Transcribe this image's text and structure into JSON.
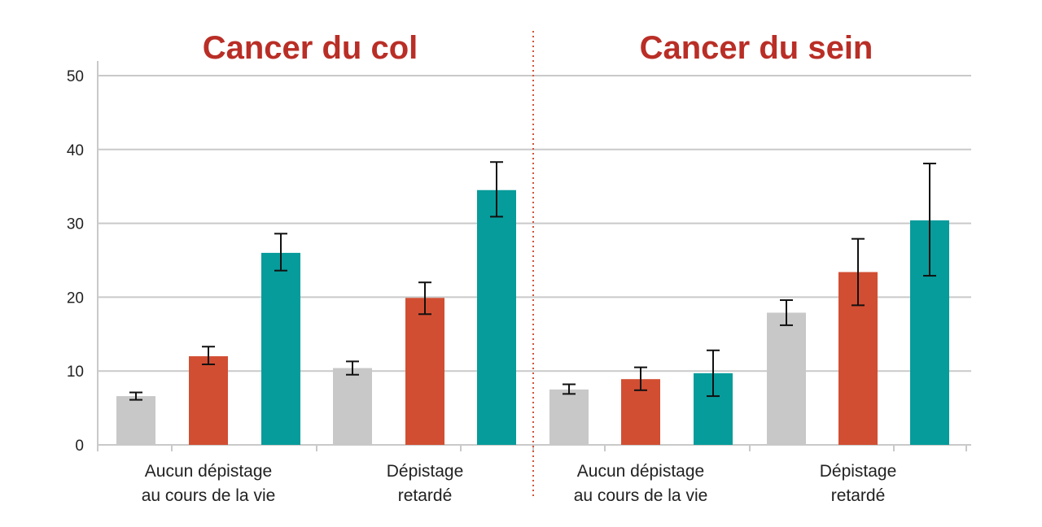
{
  "colors": {
    "grey": "#c8c8c8",
    "red": "#d24e32",
    "teal": "#069c9b",
    "title": "#b92e26",
    "grid": "#c9c9c9",
    "divider": "#d2543a"
  },
  "chart_data": {
    "type": "bar",
    "y_ticks": [
      "0",
      "10",
      "20",
      "30",
      "40",
      "50"
    ],
    "ylim": [
      0,
      50
    ],
    "grid": true,
    "error_bars": true,
    "panels": [
      {
        "title": "Cancer du col",
        "groups": [
          {
            "label_lines": [
              "Aucun dépistage",
              "au cours de la vie"
            ],
            "bars": [
              {
                "color": "grey",
                "value": 6.6,
                "err_low": 6.1,
                "err_high": 7.1
              },
              {
                "color": "red",
                "value": 12.0,
                "err_low": 10.9,
                "err_high": 13.3
              },
              {
                "color": "teal",
                "value": 26.0,
                "err_low": 23.6,
                "err_high": 28.6
              }
            ]
          },
          {
            "label_lines": [
              "Dépistage",
              "retardé"
            ],
            "bars": [
              {
                "color": "grey",
                "value": 10.4,
                "err_low": 9.5,
                "err_high": 11.3
              },
              {
                "color": "red",
                "value": 19.9,
                "err_low": 17.7,
                "err_high": 22.0
              },
              {
                "color": "teal",
                "value": 34.5,
                "err_low": 30.9,
                "err_high": 38.3
              }
            ]
          }
        ]
      },
      {
        "title": "Cancer du sein",
        "groups": [
          {
            "label_lines": [
              "Aucun dépistage",
              "au cours de la vie"
            ],
            "bars": [
              {
                "color": "grey",
                "value": 7.5,
                "err_low": 6.9,
                "err_high": 8.2
              },
              {
                "color": "red",
                "value": 8.9,
                "err_low": 7.4,
                "err_high": 10.5
              },
              {
                "color": "teal",
                "value": 9.7,
                "err_low": 6.6,
                "err_high": 12.8
              }
            ]
          },
          {
            "label_lines": [
              "Dépistage",
              "retardé"
            ],
            "bars": [
              {
                "color": "grey",
                "value": 17.9,
                "err_low": 16.2,
                "err_high": 19.6
              },
              {
                "color": "red",
                "value": 23.4,
                "err_low": 18.9,
                "err_high": 27.9
              },
              {
                "color": "teal",
                "value": 30.4,
                "err_low": 22.9,
                "err_high": 38.1
              }
            ]
          }
        ]
      }
    ]
  }
}
